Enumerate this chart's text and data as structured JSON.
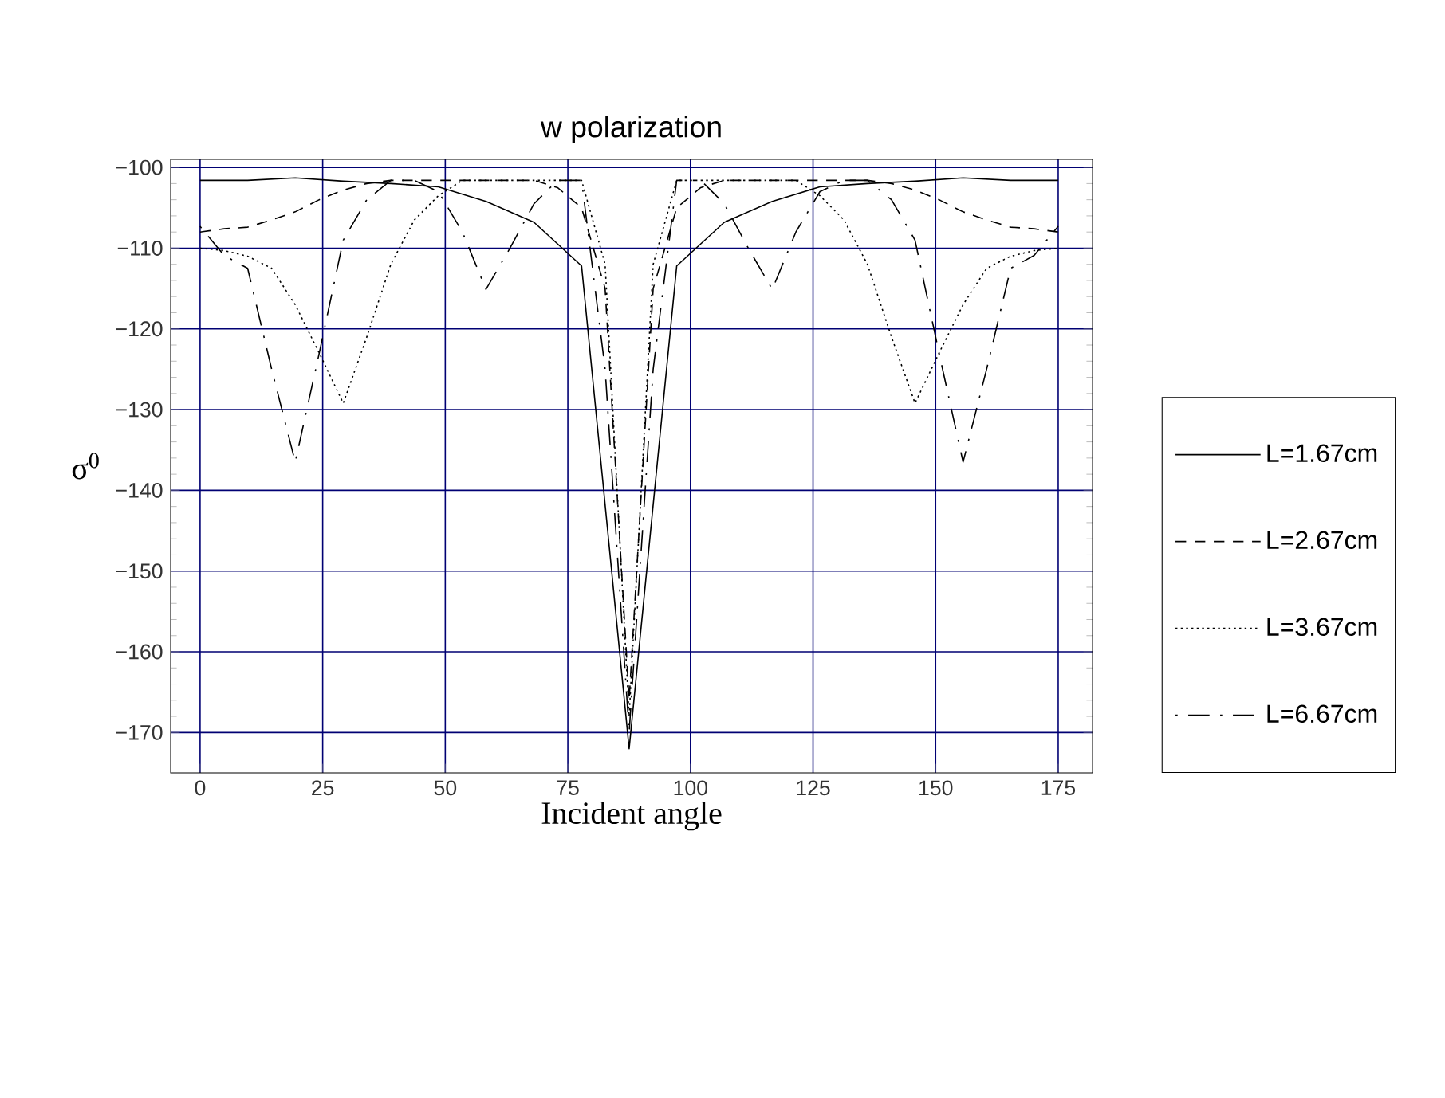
{
  "chart_data": {
    "type": "line",
    "title": "w polarization",
    "xlabel": "Incident angle",
    "ylabel": "σ$^{0}$",
    "xlim": [
      -6,
      182
    ],
    "ylim": [
      -175,
      -99
    ],
    "xticks": [
      0,
      25,
      50,
      75,
      100,
      125,
      150,
      175
    ],
    "yticks": [
      {
        "value": -100,
        "label": "−100"
      },
      {
        "value": -110,
        "label": "−110"
      },
      {
        "value": -120,
        "label": "−120"
      },
      {
        "value": -130,
        "label": "−130"
      },
      {
        "value": -140,
        "label": "−140"
      },
      {
        "value": -150,
        "label": "−150"
      },
      {
        "value": -160,
        "label": "−160"
      },
      {
        "value": -170,
        "label": "−170"
      }
    ],
    "grid": true,
    "legend": "right",
    "series": [
      {
        "name": "L=1.67cm",
        "color": "#000000",
        "line_style": "solid",
        "x": [
          0,
          9.7,
          19.4,
          29.2,
          38.9,
          48.6,
          58.3,
          68.1,
          77.8,
          87.5,
          97.2,
          106.9,
          116.7,
          126.4,
          136.1,
          145.8,
          155.6,
          165.3,
          175
        ],
        "values": [
          -101.6,
          -101.6,
          -101.3,
          -101.7,
          -102.0,
          -102.4,
          -104.2,
          -106.8,
          -112.2,
          -172,
          -112.2,
          -106.8,
          -104.2,
          -102.4,
          -102.0,
          -101.7,
          -101.3,
          -101.6,
          -101.6
        ]
      },
      {
        "name": "L=2.67cm",
        "color": "#000000",
        "line_style": "dashed",
        "x": [
          0,
          4.9,
          9.7,
          14.6,
          19.4,
          24.3,
          29.2,
          34,
          38.9,
          48.6,
          58.3,
          68.1,
          72.9,
          77.8,
          82.6,
          87.5,
          92.4,
          97.2,
          102.1,
          106.9,
          116.7,
          126.4,
          136.1,
          141,
          145.8,
          150.7,
          155.6,
          160.4,
          165.3,
          170.1,
          175
        ],
        "values": [
          -108.0,
          -107.6,
          -107.4,
          -106.5,
          -105.5,
          -104.0,
          -102.8,
          -102.0,
          -101.6,
          -101.6,
          -101.6,
          -101.6,
          -102.5,
          -105,
          -115,
          -166,
          -115,
          -105,
          -102.5,
          -101.6,
          -101.6,
          -101.6,
          -101.6,
          -102.0,
          -102.8,
          -104.0,
          -105.5,
          -106.5,
          -107.4,
          -107.6,
          -108.0
        ]
      },
      {
        "name": "L=3.67cm",
        "color": "#000000",
        "line_style": "dotted",
        "x": [
          0,
          4.9,
          9.7,
          14.6,
          19.4,
          24.3,
          29.2,
          34,
          38.9,
          43.7,
          48.6,
          53.5,
          63.2,
          72.9,
          77.8,
          82.6,
          87.5,
          92.4,
          97.2,
          102.1,
          111.8,
          121.5,
          126.4,
          131.3,
          136.1,
          141,
          145.8,
          150.7,
          155.6,
          160.4,
          165.3,
          170.1,
          175
        ],
        "values": [
          -110,
          -110.3,
          -111,
          -112.5,
          -117,
          -123,
          -129.2,
          -121,
          -112,
          -106.5,
          -103.5,
          -101.6,
          -101.6,
          -101.6,
          -101.6,
          -112,
          -168,
          -112,
          -101.6,
          -101.6,
          -101.6,
          -101.6,
          -103.5,
          -106.5,
          -112,
          -121,
          -129.2,
          -123,
          -117,
          -112.5,
          -111,
          -110.3,
          -110
        ]
      },
      {
        "name": "L=6.67cm",
        "color": "#000000",
        "line_style": "dashdotted",
        "x": [
          0,
          4.9,
          9.7,
          14.6,
          19.4,
          24.3,
          29.2,
          34,
          38.9,
          43.7,
          48.6,
          53.5,
          58.3,
          63.2,
          68.1,
          72.9,
          77.8,
          82.6,
          87.5,
          92.4,
          97.2,
          102.1,
          106.9,
          111.8,
          116.7,
          121.5,
          126.4,
          131.3,
          136.1,
          141,
          145.8,
          150.7,
          155.6,
          160.4,
          165.3,
          170.1,
          175
        ],
        "values": [
          -107.3,
          -110.9,
          -112.5,
          -125,
          -136.5,
          -123,
          -109,
          -104,
          -101.6,
          -101.6,
          -103,
          -108,
          -115.1,
          -110,
          -104.5,
          -101.6,
          -101.6,
          -125,
          -170,
          -125,
          -101.6,
          -101.6,
          -104.5,
          -110,
          -115.1,
          -108,
          -103,
          -101.6,
          -101.6,
          -104,
          -109,
          -123,
          -136.5,
          -125,
          -112.5,
          -110.9,
          -107.3
        ]
      }
    ]
  }
}
